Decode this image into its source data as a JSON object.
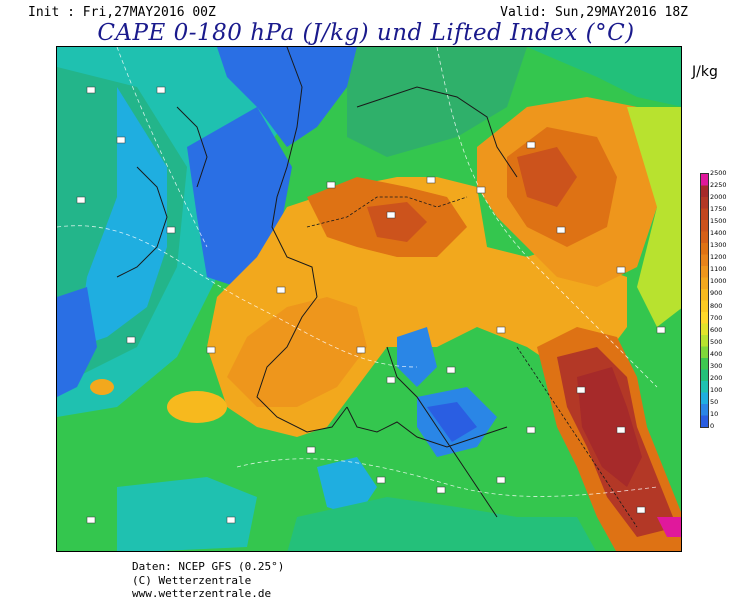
{
  "header": {
    "init": "Init : Fri,27MAY2016 00Z",
    "valid": "Valid: Sun,29MAY2016 18Z",
    "title": "CAPE 0-180 hPa (J/kg) und Lifted Index (°C)"
  },
  "legend": {
    "unit": "J/kg",
    "levels": [
      "2500",
      "2250",
      "2000",
      "1750",
      "1500",
      "1400",
      "1300",
      "1200",
      "1100",
      "1000",
      "900",
      "800",
      "700",
      "600",
      "500",
      "400",
      "300",
      "200",
      "100",
      "50",
      "10",
      "0"
    ],
    "colors": [
      "#e0189c",
      "#a62a2a",
      "#b33826",
      "#c2461f",
      "#cc531c",
      "#d56018",
      "#de7214",
      "#e7831a",
      "#ee961c",
      "#f2a81d",
      "#f7b91e",
      "#fbca22",
      "#ffd92a",
      "#e2e32a",
      "#b8e22f",
      "#7fd83a",
      "#3ec850",
      "#24c07a",
      "#1fc1b0",
      "#1faee0",
      "#2a86e6",
      "#2a5ee2"
    ]
  },
  "credits": {
    "line1": "Daten: NCEP GFS (0.25°)",
    "line2": "(C) Wetterzentrale",
    "line3": "www.wetterzentrale.de"
  }
}
